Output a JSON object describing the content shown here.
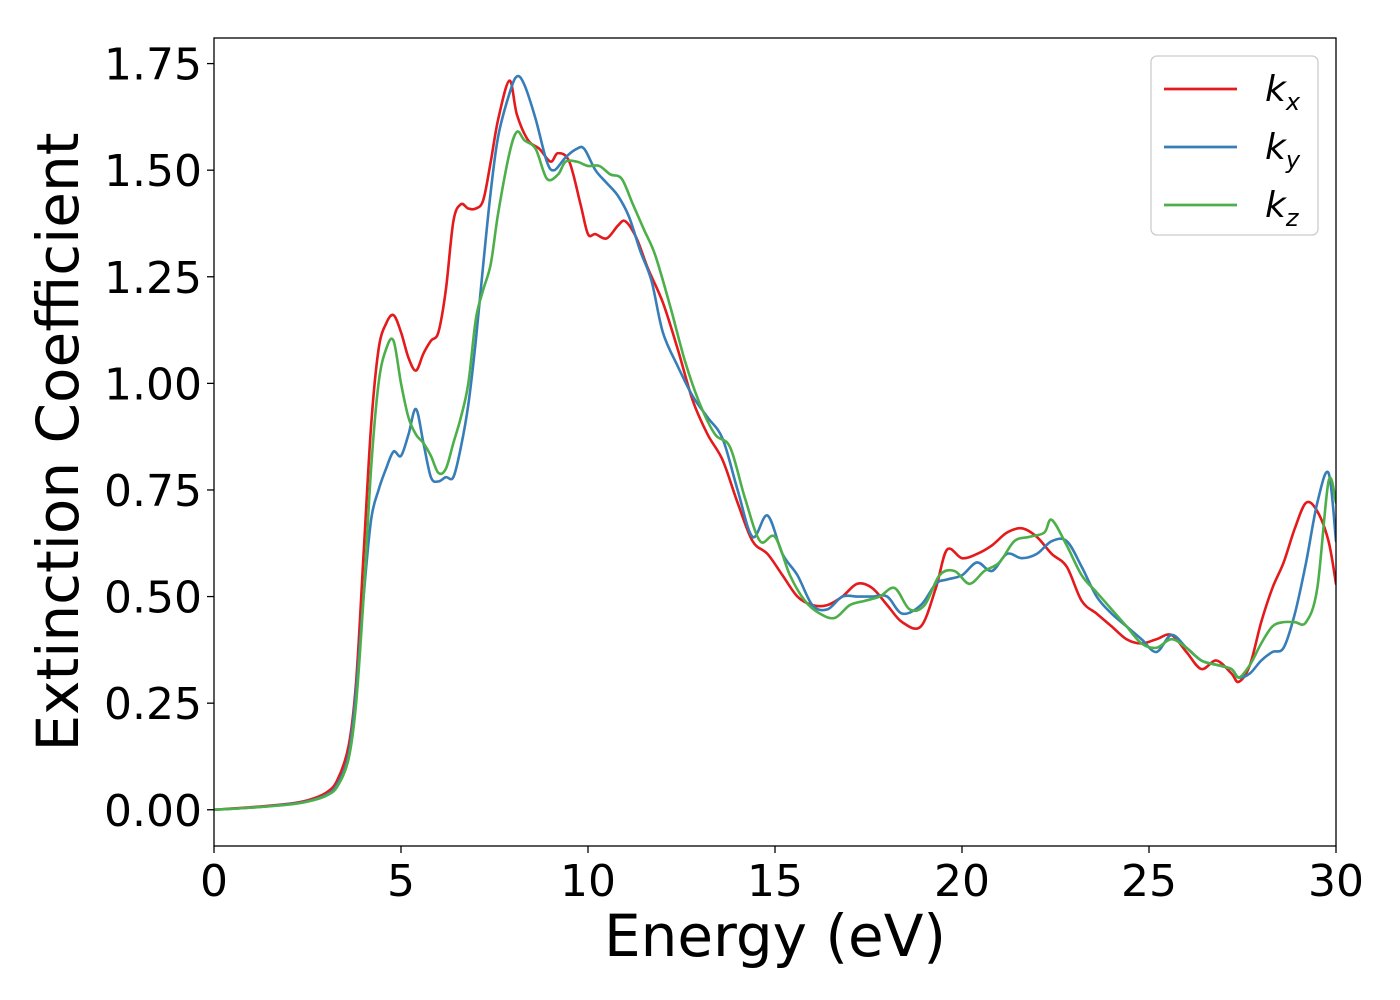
{
  "chart_data": {
    "type": "line",
    "xlabel": "Energy (eV)",
    "ylabel": "Extinction Coefficient",
    "xlim": [
      0,
      30
    ],
    "ylim": [
      -0.085,
      1.81
    ],
    "xticks": [
      0,
      5,
      10,
      15,
      20,
      25,
      30
    ],
    "xtick_labels": [
      "0",
      "5",
      "10",
      "15",
      "20",
      "25",
      "30"
    ],
    "yticks": [
      0.0,
      0.25,
      0.5,
      0.75,
      1.0,
      1.25,
      1.5,
      1.75
    ],
    "ytick_labels": [
      "0.00",
      "0.25",
      "0.50",
      "0.75",
      "1.00",
      "1.25",
      "1.50",
      "1.75"
    ],
    "grid": false,
    "legend_position": "top-right",
    "series": [
      {
        "name": "k",
        "subscript": "x",
        "color": "#e41a1c",
        "x": [
          0,
          1,
          2,
          2.5,
          3,
          3.3,
          3.6,
          3.8,
          4,
          4.2,
          4.4,
          4.6,
          4.8,
          5,
          5.2,
          5.4,
          5.6,
          5.8,
          6,
          6.2,
          6.4,
          6.6,
          6.8,
          7,
          7.2,
          7.4,
          7.6,
          7.9,
          8.1,
          8.4,
          8.7,
          9,
          9.2,
          9.5,
          9.8,
          10,
          10.2,
          10.5,
          10.8,
          11,
          11.3,
          11.6,
          12,
          12.4,
          12.8,
          13.2,
          13.6,
          14,
          14.4,
          14.8,
          15.2,
          15.6,
          16,
          16.4,
          16.8,
          17.2,
          17.6,
          18,
          18.4,
          18.9,
          19.3,
          19.6,
          20,
          20.4,
          20.8,
          21.2,
          21.6,
          22,
          22.4,
          22.8,
          23.2,
          23.6,
          24,
          24.4,
          24.8,
          25.2,
          25.6,
          26,
          26.4,
          26.8,
          27.2,
          27.4,
          27.7,
          28,
          28.3,
          28.6,
          28.9,
          29.2,
          29.5,
          29.8,
          30
        ],
        "y": [
          0.0,
          0.006,
          0.014,
          0.022,
          0.04,
          0.07,
          0.15,
          0.3,
          0.6,
          0.9,
          1.08,
          1.14,
          1.16,
          1.12,
          1.06,
          1.03,
          1.07,
          1.1,
          1.12,
          1.22,
          1.38,
          1.42,
          1.41,
          1.41,
          1.43,
          1.52,
          1.62,
          1.71,
          1.63,
          1.57,
          1.55,
          1.52,
          1.54,
          1.52,
          1.42,
          1.35,
          1.35,
          1.34,
          1.37,
          1.38,
          1.34,
          1.27,
          1.19,
          1.08,
          0.96,
          0.88,
          0.82,
          0.72,
          0.63,
          0.6,
          0.55,
          0.5,
          0.48,
          0.48,
          0.5,
          0.53,
          0.52,
          0.48,
          0.44,
          0.43,
          0.52,
          0.61,
          0.59,
          0.6,
          0.62,
          0.65,
          0.66,
          0.64,
          0.6,
          0.57,
          0.49,
          0.46,
          0.43,
          0.4,
          0.39,
          0.4,
          0.41,
          0.37,
          0.33,
          0.35,
          0.32,
          0.3,
          0.34,
          0.44,
          0.52,
          0.58,
          0.66,
          0.72,
          0.7,
          0.63,
          0.53
        ]
      },
      {
        "name": "k",
        "subscript": "y",
        "color": "#377eb8",
        "x": [
          0,
          1,
          2,
          2.5,
          3,
          3.3,
          3.6,
          3.8,
          4,
          4.2,
          4.4,
          4.6,
          4.8,
          5,
          5.2,
          5.4,
          5.6,
          5.8,
          6,
          6.2,
          6.4,
          6.6,
          6.8,
          7,
          7.2,
          7.4,
          7.6,
          7.9,
          8.1,
          8.3,
          8.6,
          8.9,
          9.1,
          9.4,
          9.7,
          9.9,
          10.2,
          10.5,
          10.8,
          11.1,
          11.4,
          11.7,
          12,
          12.4,
          12.8,
          13.2,
          13.6,
          14,
          14.4,
          14.8,
          15.2,
          15.6,
          16,
          16.4,
          16.8,
          17.2,
          17.6,
          18,
          18.4,
          18.9,
          19.3,
          19.6,
          20,
          20.4,
          20.8,
          21.2,
          21.6,
          22,
          22.4,
          22.8,
          23.2,
          23.6,
          24,
          24.4,
          24.8,
          25.2,
          25.6,
          26,
          26.4,
          26.8,
          27.2,
          27.4,
          27.7,
          28,
          28.3,
          28.6,
          28.9,
          29.2,
          29.5,
          29.8,
          30
        ],
        "y": [
          0.0,
          0.005,
          0.013,
          0.02,
          0.035,
          0.06,
          0.13,
          0.28,
          0.5,
          0.68,
          0.75,
          0.8,
          0.84,
          0.83,
          0.88,
          0.94,
          0.86,
          0.78,
          0.77,
          0.78,
          0.78,
          0.85,
          0.95,
          1.1,
          1.28,
          1.45,
          1.58,
          1.68,
          1.72,
          1.7,
          1.62,
          1.52,
          1.5,
          1.53,
          1.55,
          1.55,
          1.5,
          1.47,
          1.44,
          1.39,
          1.31,
          1.24,
          1.12,
          1.04,
          0.97,
          0.92,
          0.87,
          0.75,
          0.64,
          0.69,
          0.6,
          0.55,
          0.48,
          0.47,
          0.5,
          0.5,
          0.5,
          0.5,
          0.46,
          0.48,
          0.53,
          0.54,
          0.55,
          0.58,
          0.56,
          0.6,
          0.59,
          0.6,
          0.63,
          0.63,
          0.57,
          0.5,
          0.46,
          0.43,
          0.4,
          0.37,
          0.41,
          0.38,
          0.35,
          0.34,
          0.33,
          0.31,
          0.32,
          0.35,
          0.37,
          0.38,
          0.46,
          0.58,
          0.72,
          0.79,
          0.63
        ]
      },
      {
        "name": "k",
        "subscript": "z",
        "color": "#4daf4a",
        "x": [
          0,
          1,
          2,
          2.5,
          3,
          3.3,
          3.6,
          3.8,
          4,
          4.2,
          4.4,
          4.6,
          4.8,
          5,
          5.2,
          5.4,
          5.6,
          5.8,
          6,
          6.2,
          6.4,
          6.6,
          6.8,
          7,
          7.2,
          7.4,
          7.6,
          7.9,
          8.1,
          8.3,
          8.6,
          8.9,
          9.2,
          9.4,
          9.7,
          10,
          10.3,
          10.6,
          10.9,
          11.2,
          11.5,
          11.8,
          12.2,
          12.6,
          13,
          13.4,
          13.8,
          14.2,
          14.6,
          15,
          15.4,
          15.8,
          16.2,
          16.6,
          17,
          17.4,
          17.8,
          18.2,
          18.6,
          19,
          19.4,
          19.8,
          20.2,
          20.6,
          21,
          21.4,
          21.8,
          22.2,
          22.4,
          22.8,
          23.2,
          23.6,
          24,
          24.4,
          24.8,
          25.2,
          25.6,
          26,
          26.4,
          26.8,
          27.2,
          27.4,
          27.7,
          28,
          28.3,
          28.6,
          28.9,
          29.2,
          29.5,
          29.8,
          30
        ],
        "y": [
          0.0,
          0.005,
          0.012,
          0.019,
          0.033,
          0.055,
          0.12,
          0.25,
          0.5,
          0.8,
          1.0,
          1.08,
          1.1,
          1.0,
          0.92,
          0.88,
          0.86,
          0.83,
          0.79,
          0.8,
          0.86,
          0.92,
          1.0,
          1.15,
          1.22,
          1.28,
          1.4,
          1.54,
          1.59,
          1.57,
          1.55,
          1.48,
          1.49,
          1.52,
          1.52,
          1.51,
          1.51,
          1.49,
          1.48,
          1.42,
          1.36,
          1.3,
          1.18,
          1.05,
          0.95,
          0.88,
          0.85,
          0.73,
          0.63,
          0.64,
          0.55,
          0.49,
          0.46,
          0.45,
          0.48,
          0.49,
          0.5,
          0.52,
          0.47,
          0.48,
          0.55,
          0.56,
          0.53,
          0.56,
          0.58,
          0.63,
          0.64,
          0.65,
          0.68,
          0.62,
          0.55,
          0.51,
          0.47,
          0.43,
          0.39,
          0.38,
          0.4,
          0.38,
          0.35,
          0.34,
          0.33,
          0.31,
          0.34,
          0.39,
          0.43,
          0.44,
          0.44,
          0.44,
          0.52,
          0.77,
          0.72
        ]
      }
    ]
  }
}
